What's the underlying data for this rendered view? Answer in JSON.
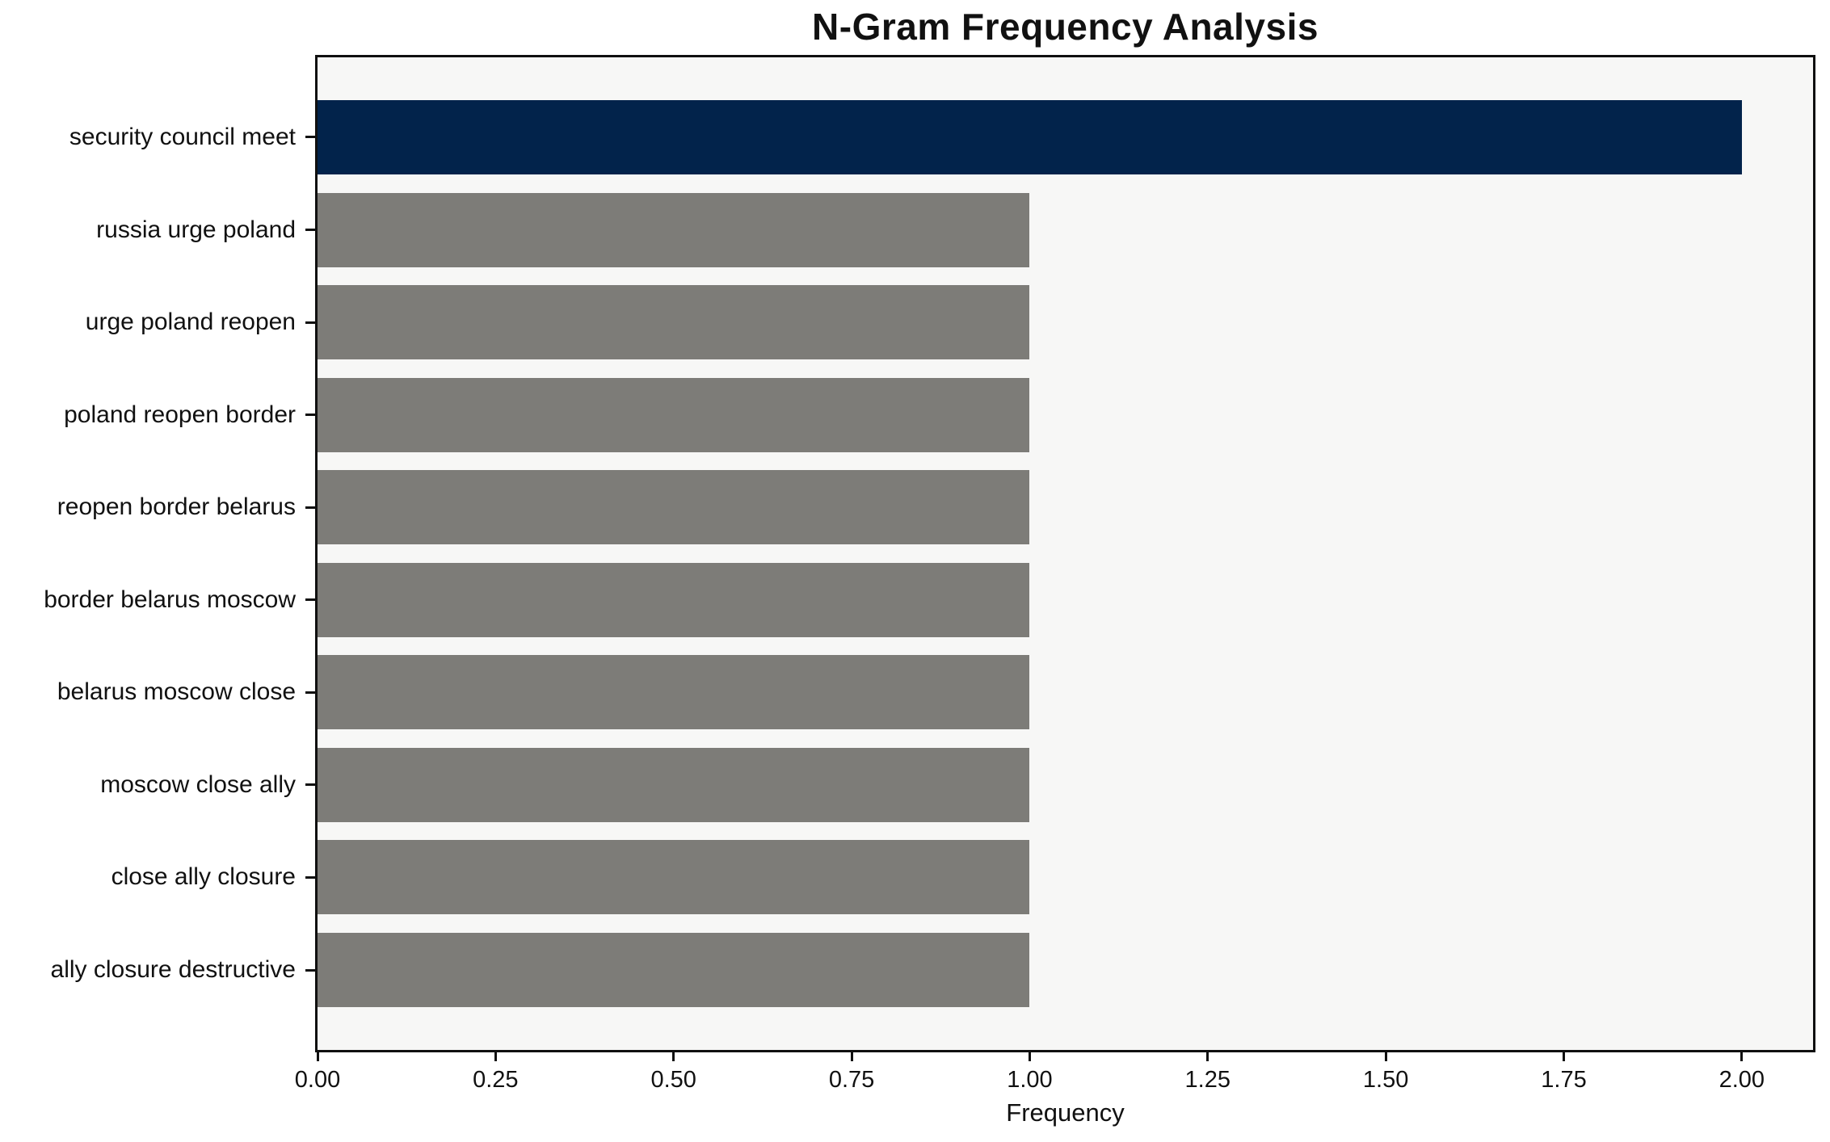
{
  "chart_data": {
    "type": "bar",
    "orientation": "horizontal",
    "title": "N-Gram Frequency Analysis",
    "xlabel": "Frequency",
    "ylabel": "",
    "categories": [
      "security council meet",
      "russia urge poland",
      "urge poland reopen",
      "poland reopen border",
      "reopen border belarus",
      "border belarus moscow",
      "belarus moscow close",
      "moscow close ally",
      "close ally closure",
      "ally closure destructive"
    ],
    "values": [
      2,
      1,
      1,
      1,
      1,
      1,
      1,
      1,
      1,
      1
    ],
    "bar_colors": [
      "#02234b",
      "#7d7c78",
      "#7d7c78",
      "#7d7c78",
      "#7d7c78",
      "#7d7c78",
      "#7d7c78",
      "#7d7c78",
      "#7d7c78",
      "#7d7c78"
    ],
    "x_ticks": [
      {
        "value": 0.0,
        "label": "0.00"
      },
      {
        "value": 0.25,
        "label": "0.25"
      },
      {
        "value": 0.5,
        "label": "0.50"
      },
      {
        "value": 0.75,
        "label": "0.75"
      },
      {
        "value": 1.0,
        "label": "1.00"
      },
      {
        "value": 1.25,
        "label": "1.25"
      },
      {
        "value": 1.5,
        "label": "1.50"
      },
      {
        "value": 1.75,
        "label": "1.75"
      },
      {
        "value": 2.0,
        "label": "2.00"
      }
    ],
    "xlim": [
      0,
      2.1
    ],
    "grid": false,
    "legend": false,
    "bar_height_fraction": 0.8,
    "colors": {
      "highlight": "#02234b",
      "default": "#7d7c78",
      "plot_background": "#f7f7f6",
      "figure_background": "#ffffff",
      "spine": "#101010",
      "text": "#111111"
    }
  }
}
